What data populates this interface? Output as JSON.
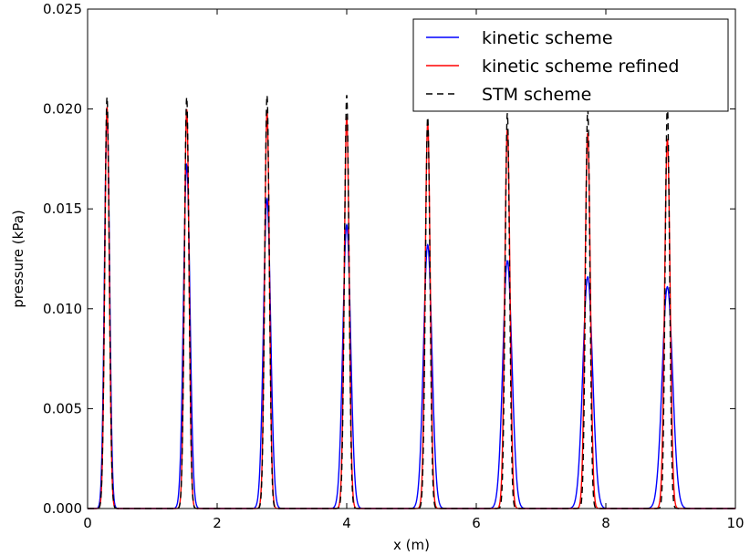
{
  "chart_data": {
    "type": "line",
    "title": "",
    "xlabel": "x (m)",
    "ylabel": "pressure (kPa)",
    "xlim": [
      0,
      10
    ],
    "ylim": [
      0,
      0.025
    ],
    "xticks": [
      0,
      2,
      4,
      6,
      8,
      10
    ],
    "xtick_labels": [
      "0",
      "2",
      "4",
      "6",
      "8",
      "10"
    ],
    "yticks": [
      0.0,
      0.005,
      0.01,
      0.015,
      0.02,
      0.025
    ],
    "ytick_labels": [
      "0.000",
      "0.005",
      "0.010",
      "0.015",
      "0.020",
      "0.025"
    ],
    "grid": false,
    "legend_position": "top-right",
    "peak_centers": [
      0.3,
      1.53,
      2.77,
      4.0,
      5.25,
      6.48,
      7.72,
      8.95
    ],
    "series": [
      {
        "name": "kinetic scheme",
        "color": "#0000ff",
        "dash": "solid",
        "peak_heights": [
          0.0197,
          0.0172,
          0.0155,
          0.0142,
          0.0132,
          0.0124,
          0.0116,
          0.0111
        ],
        "peak_widths": [
          0.04,
          0.05,
          0.055,
          0.06,
          0.065,
          0.07,
          0.075,
          0.08
        ]
      },
      {
        "name": "kinetic scheme refined",
        "color": "#ff0000",
        "dash": "solid",
        "peak_heights": [
          0.0201,
          0.02,
          0.0199,
          0.0196,
          0.0193,
          0.019,
          0.0188,
          0.0185
        ],
        "peak_widths": [
          0.035,
          0.036,
          0.037,
          0.038,
          0.039,
          0.04,
          0.041,
          0.042
        ]
      },
      {
        "name": "STM scheme",
        "color": "#000000",
        "dash": "dashed",
        "peak_heights": [
          0.0206,
          0.0206,
          0.0207,
          0.0207,
          0.0196,
          0.0198,
          0.02,
          0.0202
        ],
        "peak_widths": [
          0.035,
          0.035,
          0.035,
          0.035,
          0.035,
          0.034,
          0.034,
          0.034
        ]
      }
    ]
  }
}
